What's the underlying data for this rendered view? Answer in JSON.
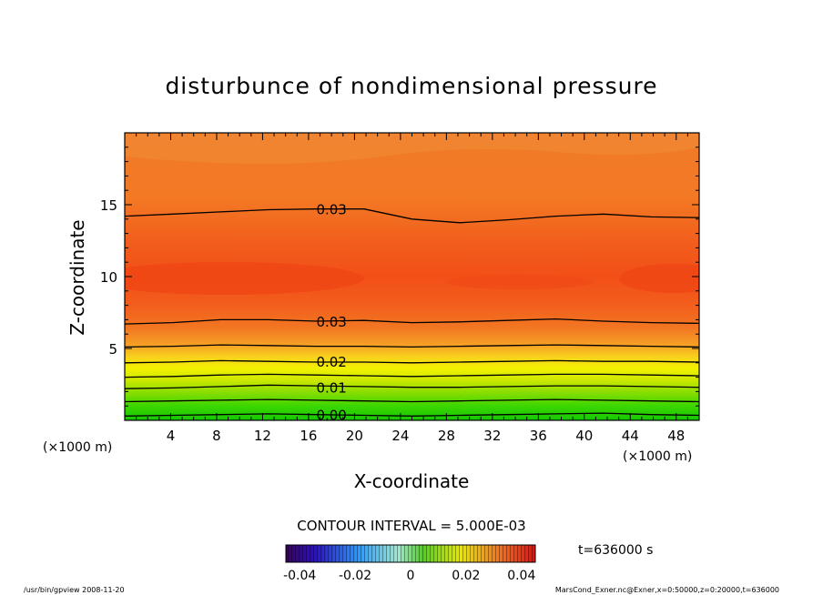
{
  "chart_data": {
    "type": "contour",
    "title": "disturbunce of nondimensional pressure",
    "xlabel": "X-coordinate",
    "ylabel": "Z-coordinate",
    "x_unit": "(×1000 m)",
    "z_unit": "(×1000 m)",
    "xlim": [
      0,
      50
    ],
    "ylim": [
      0,
      20
    ],
    "x_ticks": [
      4,
      8,
      12,
      16,
      20,
      24,
      28,
      32,
      36,
      40,
      44,
      48
    ],
    "y_ticks": [
      5,
      10,
      15
    ],
    "contour_interval_text": "CONTOUR INTERVAL = 5.000E-03",
    "time_text": "t=636000 s",
    "colorbar": {
      "range": [
        -0.045,
        0.045
      ],
      "tick_values": [
        -0.04,
        -0.02,
        0,
        0.02,
        0.04
      ],
      "tick_labels": [
        "-0.04",
        "-0.02",
        "0",
        "0.02",
        "0.04"
      ]
    },
    "labeled_contours": [
      {
        "label": "0.03",
        "x": 18,
        "z": 14.7
      },
      {
        "label": "0.03",
        "x": 18,
        "z": 6.9
      },
      {
        "label": "0.02",
        "x": 18,
        "z": 4.1
      },
      {
        "label": "0.01",
        "x": 18,
        "z": 2.3
      },
      {
        "label": "0.00",
        "x": 18,
        "z": 0.4
      }
    ],
    "contour_lines": [
      {
        "value": 0.0,
        "z": [
          0.3,
          0.35,
          0.4,
          0.45,
          0.4,
          0.35,
          0.3,
          0.35,
          0.4,
          0.45,
          0.5,
          0.4,
          0.35
        ]
      },
      {
        "value": 0.005,
        "z": [
          1.3,
          1.35,
          1.4,
          1.45,
          1.4,
          1.35,
          1.3,
          1.35,
          1.4,
          1.45,
          1.4,
          1.35,
          1.3
        ]
      },
      {
        "value": 0.01,
        "z": [
          2.2,
          2.25,
          2.35,
          2.45,
          2.4,
          2.35,
          2.3,
          2.3,
          2.35,
          2.4,
          2.4,
          2.35,
          2.3
        ]
      },
      {
        "value": 0.015,
        "z": [
          3.0,
          3.05,
          3.15,
          3.2,
          3.15,
          3.1,
          3.05,
          3.1,
          3.15,
          3.2,
          3.2,
          3.15,
          3.1
        ]
      },
      {
        "value": 0.02,
        "z": [
          4.0,
          4.05,
          4.15,
          4.1,
          4.05,
          4.05,
          4.0,
          4.05,
          4.1,
          4.15,
          4.1,
          4.1,
          4.05
        ]
      },
      {
        "value": 0.025,
        "z": [
          5.1,
          5.15,
          5.25,
          5.2,
          5.15,
          5.15,
          5.1,
          5.15,
          5.2,
          5.25,
          5.2,
          5.15,
          5.1
        ]
      },
      {
        "value": 0.03,
        "z": [
          6.7,
          6.8,
          7.0,
          7.0,
          6.9,
          6.95,
          6.8,
          6.85,
          6.95,
          7.05,
          6.9,
          6.8,
          6.75
        ]
      },
      {
        "value": 0.03,
        "z": [
          14.2,
          14.35,
          14.5,
          14.65,
          14.7,
          14.7,
          14.0,
          13.75,
          13.95,
          14.2,
          14.35,
          14.15,
          14.1
        ]
      }
    ]
  },
  "footer": {
    "left": "/usr/bin/gpview   2008-11-20",
    "right": "MarsCond_Exner.nc@Exner,x=0:50000,z=0:20000,t=636000"
  }
}
